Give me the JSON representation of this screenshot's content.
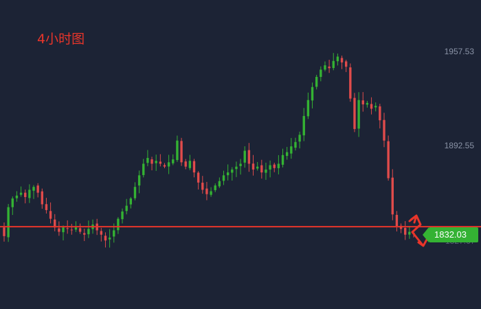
{
  "title": "4小时图",
  "current_price": "1832.03",
  "faint_label": "1827.67",
  "colors": {
    "background": "#1c2335",
    "up": "#34b233",
    "down": "#e04b4b",
    "support_line": "#e8352a",
    "axis_text": "#8a93a6"
  },
  "chart_data": {
    "type": "candlestick",
    "title": "4小时图",
    "y_ticks": [
      {
        "value": 1957.53,
        "label": "1957.53"
      },
      {
        "value": 1892.55,
        "label": "1892.55"
      }
    ],
    "ylim": [
      1815,
      1970
    ],
    "horizontal_line": 1836.5,
    "current_price": 1832.03,
    "grid": false,
    "closes": [
      1830,
      1850,
      1856,
      1858,
      1860,
      1857,
      1862,
      1864,
      1860,
      1852,
      1848,
      1842,
      1836,
      1833,
      1836,
      1835,
      1834,
      1836,
      1833,
      1831,
      1835,
      1838,
      1834,
      1831,
      1827,
      1829,
      1834,
      1842,
      1847,
      1851,
      1856,
      1864,
      1872,
      1880,
      1884,
      1880,
      1882,
      1880,
      1878,
      1881,
      1883,
      1896,
      1881,
      1878,
      1882,
      1874,
      1867,
      1862,
      1859,
      1861,
      1865,
      1868,
      1872,
      1874,
      1876,
      1878,
      1880,
      1889,
      1880,
      1876,
      1878,
      1874,
      1876,
      1879,
      1877,
      1880,
      1886,
      1888,
      1892,
      1895,
      1900,
      1913,
      1924,
      1933,
      1940,
      1945,
      1948,
      1946,
      1951,
      1954,
      1950,
      1947,
      1925,
      1904,
      1924,
      1921,
      1922,
      1918,
      1920,
      1910,
      1896,
      1870,
      1845,
      1837,
      1835,
      1831,
      1833,
      1832.03
    ]
  },
  "annotation": {
    "type": "zigzag-arrow",
    "description_hidden": true
  }
}
